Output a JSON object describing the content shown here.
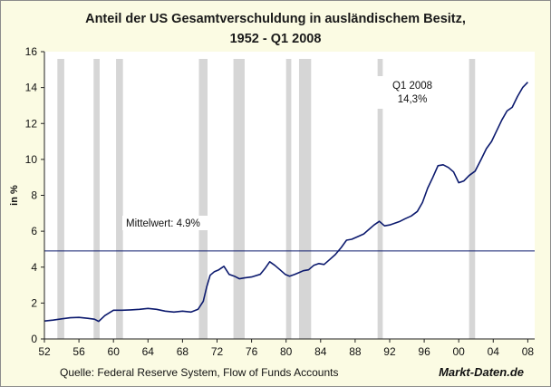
{
  "chart_data": {
    "type": "line",
    "title": [
      "Anteil der US Gesamtverschuldung in ausländischem Besitz,",
      "1952 - Q1 2008"
    ],
    "ylabel": "in %",
    "xlim": [
      1952,
      2008.8
    ],
    "ylim": [
      0,
      16
    ],
    "y_ticks": [
      0,
      2,
      4,
      6,
      8,
      10,
      12,
      14,
      16
    ],
    "x_ticks": [
      {
        "x": 1952,
        "label": "52"
      },
      {
        "x": 1956,
        "label": "56"
      },
      {
        "x": 1960,
        "label": "60"
      },
      {
        "x": 1964,
        "label": "64"
      },
      {
        "x": 1968,
        "label": "68"
      },
      {
        "x": 1972,
        "label": "72"
      },
      {
        "x": 1976,
        "label": "76"
      },
      {
        "x": 1980,
        "label": "80"
      },
      {
        "x": 1984,
        "label": "84"
      },
      {
        "x": 1988,
        "label": "88"
      },
      {
        "x": 1992,
        "label": "92"
      },
      {
        "x": 1996,
        "label": "96"
      },
      {
        "x": 2000,
        "label": "00"
      },
      {
        "x": 2004,
        "label": "04"
      },
      {
        "x": 2008,
        "label": "08"
      }
    ],
    "grid": false,
    "recession_bands": [
      [
        1953.5,
        1954.3
      ],
      [
        1957.7,
        1958.4
      ],
      [
        1960.3,
        1961.1
      ],
      [
        1969.9,
        1970.9
      ],
      [
        1973.9,
        1975.2
      ],
      [
        1980.0,
        1980.6
      ],
      [
        1981.5,
        1982.9
      ],
      [
        1990.6,
        1991.2
      ],
      [
        2001.2,
        2001.9
      ]
    ],
    "series": [
      {
        "color": "#0c1a6e",
        "x": [
          1952,
          1953,
          1954,
          1955,
          1956,
          1957,
          1957.8,
          1958.3,
          1959,
          1960,
          1961,
          1962,
          1963,
          1964,
          1965,
          1966,
          1967,
          1968,
          1969,
          1969.8,
          1970.4,
          1970.8,
          1971.2,
          1971.7,
          1972.2,
          1972.8,
          1973.4,
          1974,
          1974.6,
          1975.2,
          1976,
          1977,
          1977.6,
          1978.1,
          1978.7,
          1979.3,
          1979.9,
          1980.4,
          1981,
          1981.5,
          1982,
          1982.6,
          1983.2,
          1983.8,
          1984.4,
          1985,
          1985.7,
          1986.4,
          1987,
          1987.6,
          1988.3,
          1989,
          1989.6,
          1990.2,
          1990.8,
          1991.4,
          1992,
          1992.6,
          1993.2,
          1993.8,
          1994.5,
          1995.2,
          1995.8,
          1996.4,
          1997,
          1997.6,
          1998.2,
          1998.8,
          1999.4,
          2000,
          2000.6,
          2001.2,
          2001.9,
          2002.6,
          2003.2,
          2003.8,
          2004.4,
          2005,
          2005.6,
          2006.2,
          2006.8,
          2007.4,
          2008.0
        ],
        "values": [
          1.0,
          1.05,
          1.12,
          1.18,
          1.2,
          1.15,
          1.1,
          0.98,
          1.3,
          1.6,
          1.6,
          1.62,
          1.65,
          1.7,
          1.65,
          1.55,
          1.5,
          1.55,
          1.5,
          1.65,
          2.1,
          2.9,
          3.55,
          3.75,
          3.85,
          4.05,
          3.6,
          3.5,
          3.35,
          3.4,
          3.45,
          3.6,
          3.95,
          4.3,
          4.1,
          3.85,
          3.6,
          3.5,
          3.6,
          3.7,
          3.8,
          3.85,
          4.1,
          4.2,
          4.15,
          4.4,
          4.7,
          5.1,
          5.5,
          5.55,
          5.7,
          5.85,
          6.1,
          6.35,
          6.55,
          6.3,
          6.35,
          6.45,
          6.55,
          6.7,
          6.85,
          7.1,
          7.6,
          8.4,
          9.0,
          9.65,
          9.7,
          9.55,
          9.3,
          8.7,
          8.8,
          9.1,
          9.35,
          10.0,
          10.6,
          11.0,
          11.6,
          12.2,
          12.7,
          12.9,
          13.5,
          14.0,
          14.3
        ]
      }
    ],
    "hline": {
      "value": 4.9,
      "label": "Mittelwert: 4.9%",
      "color": "#0c1a6e"
    },
    "annotation": {
      "lines": [
        "Q1 2008",
        "14,3%"
      ]
    }
  },
  "footer": {
    "source": "Quelle: Federal Reserve System, Flow of Funds Accounts",
    "brand": "Markt-Daten.de"
  }
}
